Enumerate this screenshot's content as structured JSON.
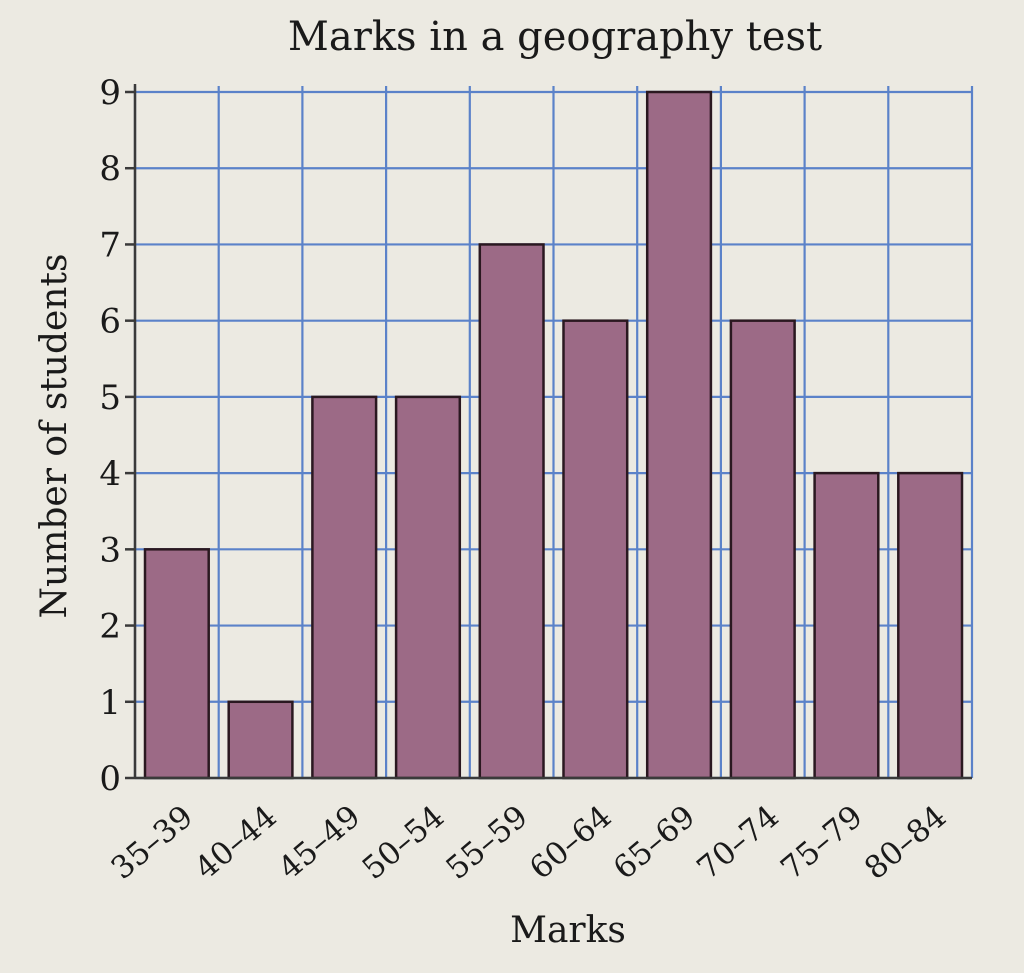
{
  "chart_data": {
    "type": "bar",
    "title": "Marks in a geography test",
    "xlabel": "Marks",
    "ylabel": "Number of students",
    "categories": [
      "35–39",
      "40–44",
      "45–49",
      "50–54",
      "55–59",
      "60–64",
      "65–69",
      "70–74",
      "75–79",
      "80–84"
    ],
    "values": [
      3,
      1,
      5,
      5,
      7,
      6,
      9,
      6,
      4,
      4
    ],
    "yticks": [
      "0",
      "1",
      "2",
      "3",
      "4",
      "5",
      "6",
      "7",
      "8",
      "9"
    ],
    "ylim": [
      0,
      9
    ],
    "grid": true,
    "legend": "none",
    "colors": {
      "bar": "#9c6a86",
      "grid": "#5b82c9",
      "background": "#eceae2"
    }
  }
}
